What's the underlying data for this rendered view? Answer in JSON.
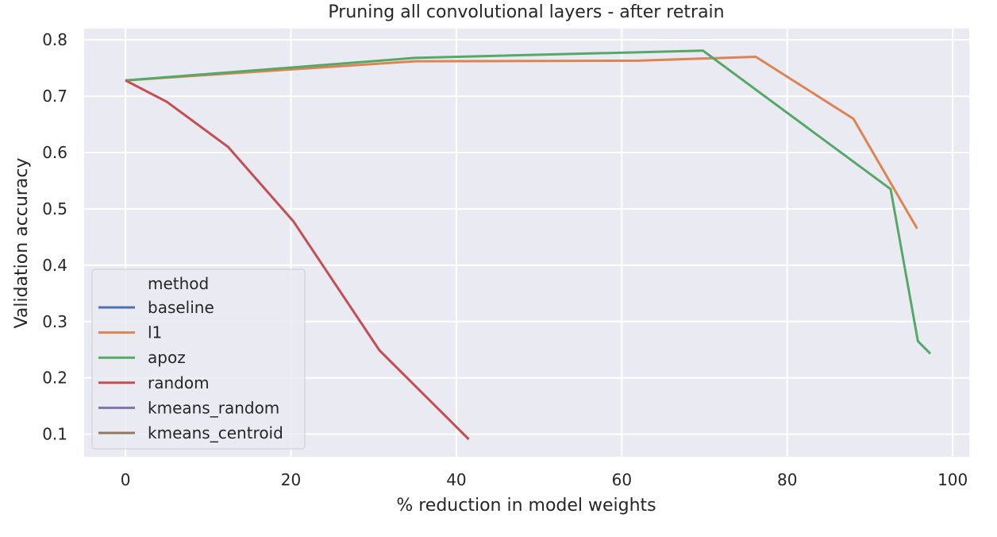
{
  "chart_data": {
    "type": "line",
    "title": "Pruning all convolutional layers - after retrain",
    "xlabel": "% reduction in model weights",
    "ylabel": "Validation accuracy",
    "xlim": [
      -5,
      102
    ],
    "ylim": [
      0.06,
      0.82
    ],
    "xticks": [
      0,
      20,
      40,
      60,
      80,
      100
    ],
    "yticks": [
      0.1,
      0.2,
      0.3,
      0.4,
      0.5,
      0.6,
      0.7,
      0.8
    ],
    "grid": true,
    "legend": {
      "title": "method",
      "placement": "lower-left",
      "entries": [
        "baseline",
        "l1",
        "apoz",
        "random",
        "kmeans_random",
        "kmeans_centroid"
      ]
    },
    "series": [
      {
        "name": "baseline",
        "color": "#4c72b0",
        "points": []
      },
      {
        "name": "l1",
        "color": "#dd8452",
        "points": [
          [
            0,
            0.728
          ],
          [
            35,
            0.762
          ],
          [
            62,
            0.763
          ],
          [
            76.2,
            0.77
          ],
          [
            88,
            0.66
          ],
          [
            95.7,
            0.465
          ]
        ]
      },
      {
        "name": "apoz",
        "color": "#55a868",
        "points": [
          [
            0,
            0.728
          ],
          [
            35,
            0.768
          ],
          [
            69.8,
            0.781
          ],
          [
            92.5,
            0.535
          ],
          [
            95.8,
            0.265
          ],
          [
            97.3,
            0.243
          ]
        ]
      },
      {
        "name": "random",
        "color": "#c44e52",
        "points": [
          [
            0,
            0.728
          ],
          [
            5,
            0.69
          ],
          [
            12.4,
            0.61
          ],
          [
            20.3,
            0.478
          ],
          [
            30.7,
            0.249
          ],
          [
            41.5,
            0.091
          ]
        ]
      },
      {
        "name": "kmeans_random",
        "color": "#8172b3",
        "points": []
      },
      {
        "name": "kmeans_centroid",
        "color": "#937860",
        "points": []
      }
    ]
  }
}
